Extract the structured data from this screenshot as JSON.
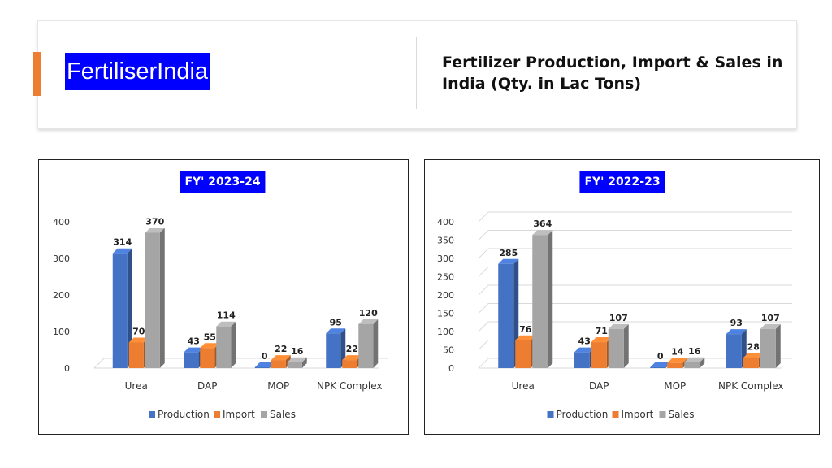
{
  "header": {
    "brand": "FertiliserIndia",
    "title": "Fertilizer Production, Import & Sales in India (Qty. in Lac Tons)"
  },
  "colors": {
    "Production": "#4472c4",
    "Import": "#ed7d31",
    "Sales": "#a5a5a5",
    "accent": "#ed7d31",
    "title_bg": "#0000ff"
  },
  "chart_data": [
    {
      "type": "bar",
      "title": "FY' 2023-24",
      "categories": [
        "Urea",
        "DAP",
        "MOP",
        "NPK Complex"
      ],
      "series": [
        {
          "name": "Production",
          "values": [
            314,
            43,
            0,
            95
          ]
        },
        {
          "name": "Import",
          "values": [
            70,
            55,
            22,
            22
          ]
        },
        {
          "name": "Sales",
          "values": [
            370,
            114,
            16,
            120
          ]
        }
      ],
      "yticks": [
        0,
        100,
        200,
        300,
        400
      ],
      "ylim": [
        0,
        400
      ],
      "grid": false,
      "legend": "bottom"
    },
    {
      "type": "bar",
      "title": "FY' 2022-23",
      "categories": [
        "Urea",
        "DAP",
        "MOP",
        "NPK Complex"
      ],
      "series": [
        {
          "name": "Production",
          "values": [
            285,
            43,
            0,
            93
          ]
        },
        {
          "name": "Import",
          "values": [
            76,
            71,
            14,
            28
          ]
        },
        {
          "name": "Sales",
          "values": [
            364,
            107,
            16,
            107
          ]
        }
      ],
      "yticks": [
        0,
        50,
        100,
        150,
        200,
        250,
        300,
        350,
        400
      ],
      "ylim": [
        0,
        400
      ],
      "grid": true,
      "legend": "bottom"
    }
  ]
}
